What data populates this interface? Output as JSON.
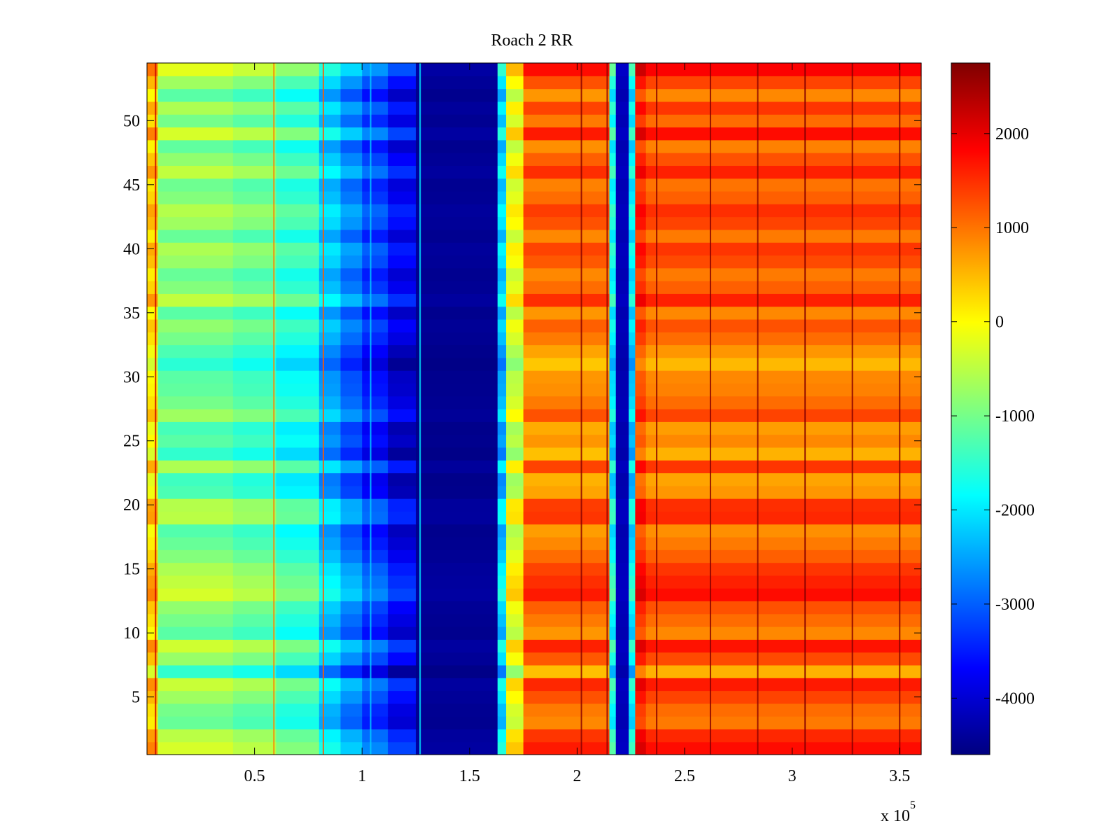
{
  "chart_data": {
    "type": "heatmap",
    "title": "Roach 2 RR",
    "xlabel": "",
    "ylabel": "",
    "x_multiplier_label": "x 10",
    "x_multiplier_exponent": "5",
    "xlim": [
      0,
      360000
    ],
    "ylim": [
      0.5,
      54.5
    ],
    "x_ticks": [
      50000,
      100000,
      150000,
      200000,
      250000,
      300000,
      350000
    ],
    "x_tick_labels": [
      "0.5",
      "1",
      "1.5",
      "2",
      "2.5",
      "3",
      "3.5"
    ],
    "y_ticks": [
      5,
      10,
      15,
      20,
      25,
      30,
      35,
      40,
      45,
      50
    ],
    "y_tick_labels": [
      "5",
      "10",
      "15",
      "20",
      "25",
      "30",
      "35",
      "40",
      "45",
      "50"
    ],
    "n_rows": 54,
    "colormap": "jet",
    "clim": [
      -4600,
      2750
    ],
    "colorbar_ticks": [
      2000,
      1000,
      0,
      -1000,
      -2000,
      -3000,
      -4000
    ],
    "colorbar_tick_labels": [
      "2000",
      "1000",
      "0",
      "-1000",
      "-2000",
      "-3000",
      "-4000"
    ],
    "grid": false,
    "column_profile": [
      {
        "x0": 0,
        "x1": 5000,
        "value": 300
      },
      {
        "x0": 5000,
        "x1": 40000,
        "value": -900
      },
      {
        "x0": 40000,
        "x1": 60000,
        "value": -1100
      },
      {
        "x0": 60000,
        "x1": 80000,
        "value": -1500
      },
      {
        "x0": 80000,
        "x1": 90000,
        "value": -2300
      },
      {
        "x0": 90000,
        "x1": 100000,
        "value": -2800
      },
      {
        "x0": 100000,
        "x1": 112000,
        "value": -3300
      },
      {
        "x0": 112000,
        "x1": 125000,
        "value": -3800
      },
      {
        "x0": 125000,
        "x1": 163000,
        "value": -4450
      },
      {
        "x0": 163000,
        "x1": 167000,
        "value": -2200
      },
      {
        "x0": 167000,
        "x1": 175000,
        "value": -200
      },
      {
        "x0": 175000,
        "x1": 215000,
        "value": 1050
      },
      {
        "x0": 215000,
        "x1": 218000,
        "value": -1800
      },
      {
        "x0": 218000,
        "x1": 224000,
        "value": -4200
      },
      {
        "x0": 224000,
        "x1": 227000,
        "value": -2000
      },
      {
        "x0": 227000,
        "x1": 232000,
        "value": 1500
      },
      {
        "x0": 232000,
        "x1": 360000,
        "value": 1150
      }
    ],
    "row_offsets": [
      600,
      400,
      -200,
      -100,
      200,
      500,
      -600,
      150,
      550,
      -300,
      -100,
      100,
      600,
      450,
      300,
      0,
      -200,
      -350,
      400,
      350,
      -400,
      -500,
      300,
      -600,
      -300,
      -450,
      200,
      -100,
      -250,
      -300,
      -650,
      -400,
      -100,
      100,
      -300,
      450,
      0,
      -200,
      150,
      300,
      -200,
      200,
      350,
      0,
      -150,
      450,
      100,
      -250,
      600,
      -100,
      300,
      -300,
      200,
      700
    ],
    "vertical_lines": [
      {
        "x": 4000,
        "value": 2200
      },
      {
        "x": 59000,
        "value": 900
      },
      {
        "x": 82000,
        "value": 1200
      },
      {
        "x": 104000,
        "value": -2200
      },
      {
        "x": 127000,
        "value": -2000
      },
      {
        "x": 202000,
        "value": 2700
      },
      {
        "x": 214000,
        "value": 2600
      },
      {
        "x": 237000,
        "value": 2700
      },
      {
        "x": 262000,
        "value": 2700
      },
      {
        "x": 284000,
        "value": 2700
      },
      {
        "x": 306000,
        "value": 2700
      },
      {
        "x": 328000,
        "value": 2700
      },
      {
        "x": 350000,
        "value": 2700
      }
    ]
  }
}
